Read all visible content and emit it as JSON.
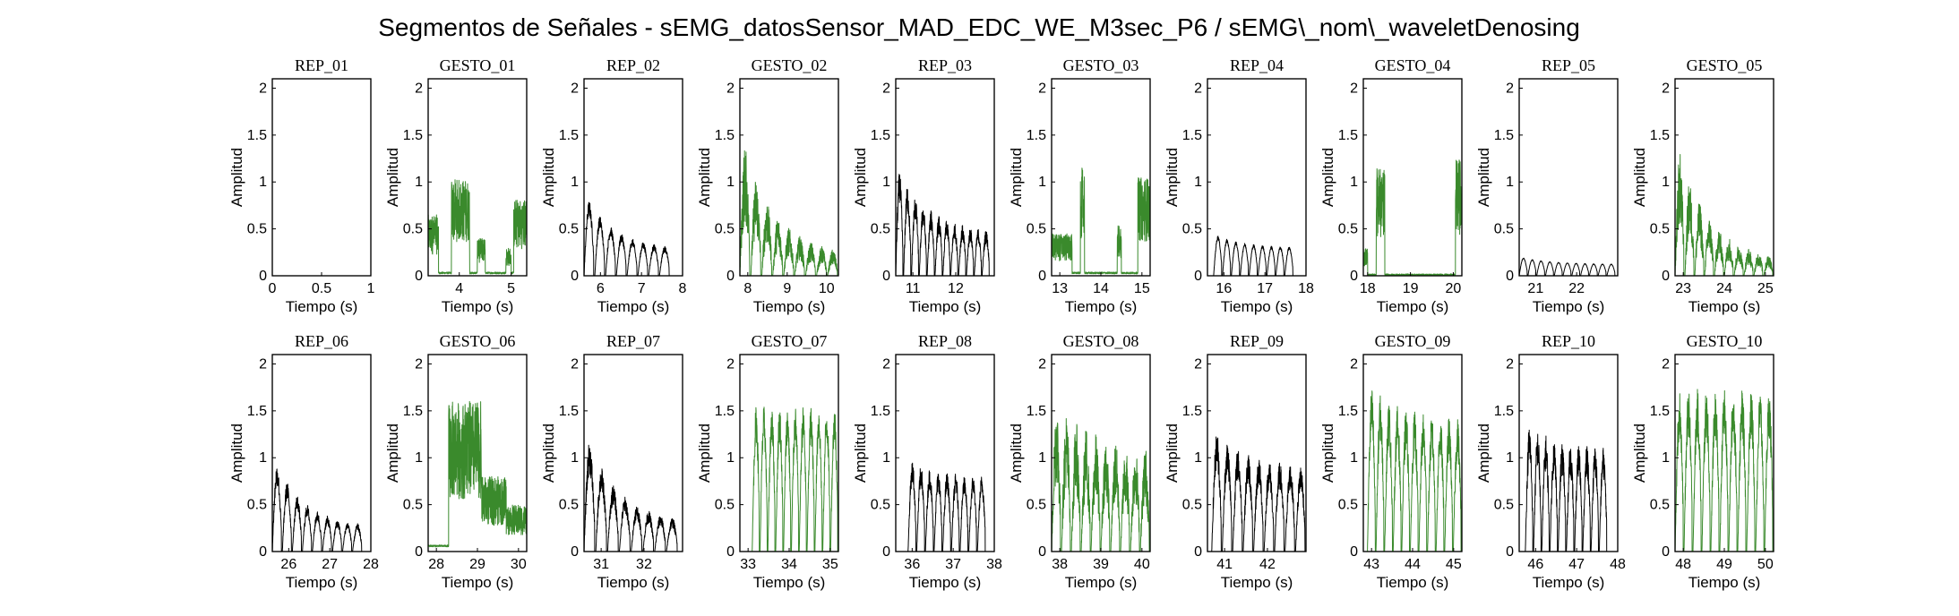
{
  "suptitle": "Segmentos de Señales - sEMG_datosSensor_MAD_EDC_WE_M3sec_P6 / sEMG\\_nom\\_waveletDenosing",
  "colors": {
    "rep": "#000000",
    "gesto": "#3a8a2c"
  },
  "chart_data": {
    "type": "line",
    "xlabel": "Tiempo (s)",
    "ylabel": "Amplitud",
    "ylim": [
      0,
      2.1
    ],
    "yticks": [
      0,
      0.5,
      1,
      1.5,
      2
    ],
    "yticklabels": [
      "0",
      "0.5",
      "1",
      "1.5",
      "2"
    ],
    "panels": [
      {
        "title": "REP_01",
        "kind": "rep",
        "xlim": [
          0,
          1
        ],
        "xticks": [
          0,
          0.5,
          1
        ],
        "xticklabels": [
          "0",
          "0.5",
          "1"
        ],
        "signal": {
          "base": 0,
          "amp": 0,
          "cycles": 0,
          "empty": true
        }
      },
      {
        "title": "GESTO_01",
        "kind": "gesto",
        "xlim": [
          3.4,
          5.3
        ],
        "xticks": [
          4,
          5
        ],
        "xticklabels": [
          "4",
          "5"
        ],
        "signal": {
          "base": 0.02,
          "amp": 0.35,
          "cycles": 0,
          "bursts": [
            [
              3.4,
              3.6,
              0.65
            ],
            [
              3.85,
              4.2,
              1.03
            ],
            [
              4.35,
              4.5,
              0.4
            ],
            [
              4.9,
              5.0,
              0.3
            ],
            [
              5.05,
              5.3,
              0.82
            ]
          ]
        }
      },
      {
        "title": "REP_02",
        "kind": "rep",
        "xlim": [
          5.6,
          8
        ],
        "xticks": [
          6,
          7,
          8
        ],
        "xticklabels": [
          "6",
          "7",
          "8"
        ],
        "signal": {
          "start": 5.6,
          "end": 7.7,
          "peak": 0.9,
          "decay": 0.3,
          "cycles": 8,
          "floor": 0.28,
          "noise": 0.2
        }
      },
      {
        "title": "GESTO_02",
        "kind": "gesto",
        "xlim": [
          7.8,
          10.3
        ],
        "xticks": [
          8,
          9,
          10
        ],
        "xticklabels": [
          "8",
          "9",
          "10"
        ],
        "signal": {
          "start": 7.8,
          "end": 10.3,
          "peak": 1.6,
          "decay": 1.0,
          "cycles": 9,
          "floor": 0.2,
          "noise": 0.6
        }
      },
      {
        "title": "REP_03",
        "kind": "rep",
        "xlim": [
          10.6,
          12.9
        ],
        "xticks": [
          11,
          12
        ],
        "xticklabels": [
          "11",
          "12"
        ],
        "signal": {
          "start": 10.6,
          "end": 12.8,
          "peak": 1.2,
          "decay": 0.55,
          "cycles": 12,
          "floor": 0.45,
          "noise": 0.3
        }
      },
      {
        "title": "GESTO_03",
        "kind": "gesto",
        "xlim": [
          12.8,
          15.2
        ],
        "xticks": [
          13,
          14,
          15
        ],
        "xticklabels": [
          "13",
          "14",
          "15"
        ],
        "signal": {
          "base": 0.02,
          "amp": 0.3,
          "cycles": 0,
          "bursts": [
            [
              12.8,
              13.3,
              0.45
            ],
            [
              13.5,
              13.6,
              1.15
            ],
            [
              14.4,
              14.5,
              0.55
            ],
            [
              14.9,
              15.2,
              1.05
            ]
          ]
        }
      },
      {
        "title": "REP_04",
        "kind": "rep",
        "xlim": [
          15.6,
          18
        ],
        "xticks": [
          16,
          17,
          18
        ],
        "xticklabels": [
          "16",
          "17",
          "18"
        ],
        "signal": {
          "start": 15.75,
          "end": 17.7,
          "peak": 0.45,
          "decay": 0.15,
          "cycles": 9,
          "floor": 0.3,
          "noise": 0.1
        }
      },
      {
        "title": "GESTO_04",
        "kind": "gesto",
        "xlim": [
          17.9,
          20.2
        ],
        "xticks": [
          18,
          19,
          20
        ],
        "xticklabels": [
          "18",
          "19",
          "20"
        ],
        "signal": {
          "base": 0.0,
          "amp": 0.05,
          "cycles": 0,
          "bursts": [
            [
              17.9,
              18.0,
              0.3
            ],
            [
              18.2,
              18.4,
              1.15
            ],
            [
              20.05,
              20.2,
              1.25
            ]
          ]
        }
      },
      {
        "title": "REP_05",
        "kind": "rep",
        "xlim": [
          20.6,
          23
        ],
        "xticks": [
          21,
          22
        ],
        "xticklabels": [
          "21",
          "22"
        ],
        "signal": {
          "start": 20.6,
          "end": 22.95,
          "peak": 0.2,
          "decay": 0.07,
          "cycles": 11,
          "floor": 0.12,
          "noise": 0.05
        }
      },
      {
        "title": "GESTO_05",
        "kind": "gesto",
        "xlim": [
          22.8,
          25.2
        ],
        "xticks": [
          23,
          24,
          25
        ],
        "xticklabels": [
          "23",
          "24",
          "25"
        ],
        "signal": {
          "start": 22.8,
          "end": 25.2,
          "peak": 1.5,
          "decay": 0.9,
          "cycles": 10,
          "floor": 0.15,
          "noise": 0.6
        }
      },
      {
        "title": "REP_06",
        "kind": "rep",
        "xlim": [
          25.6,
          28
        ],
        "xticks": [
          26,
          27,
          28
        ],
        "xticklabels": [
          "26",
          "27",
          "28"
        ],
        "signal": {
          "start": 25.6,
          "end": 27.8,
          "peak": 1.05,
          "decay": 0.8,
          "cycles": 9,
          "floor": 0.25,
          "noise": 0.25
        }
      },
      {
        "title": "GESTO_06",
        "kind": "gesto",
        "xlim": [
          27.8,
          30.2
        ],
        "xticks": [
          28,
          29,
          30
        ],
        "xticklabels": [
          "28",
          "29",
          "30"
        ],
        "signal": {
          "base": 0.05,
          "amp": 0.25,
          "cycles": 0,
          "bursts": [
            [
              28.3,
              29.1,
              1.6
            ],
            [
              29.1,
              29.7,
              0.8
            ],
            [
              29.7,
              30.2,
              0.5
            ]
          ]
        }
      },
      {
        "title": "REP_07",
        "kind": "rep",
        "xlim": [
          30.6,
          32.9
        ],
        "xticks": [
          31,
          32
        ],
        "xticklabels": [
          "31",
          "32"
        ],
        "signal": {
          "start": 30.6,
          "end": 32.8,
          "peak": 1.35,
          "decay": 1.0,
          "cycles": 8,
          "floor": 0.3,
          "noise": 0.3
        }
      },
      {
        "title": "GESTO_07",
        "kind": "gesto",
        "xlim": [
          32.8,
          35.2
        ],
        "xticks": [
          33,
          34,
          35
        ],
        "xticklabels": [
          "33",
          "34",
          "35"
        ],
        "signal": {
          "start": 33.1,
          "end": 35.2,
          "peak": 1.6,
          "decay": 0.0,
          "cycles": 11,
          "floor": 1.35,
          "noise": 0.25
        }
      },
      {
        "title": "REP_08",
        "kind": "rep",
        "xlim": [
          35.6,
          38
        ],
        "xticks": [
          36,
          37,
          38
        ],
        "xticklabels": [
          "36",
          "37",
          "38"
        ],
        "signal": {
          "start": 35.9,
          "end": 37.8,
          "peak": 1.0,
          "decay": 0.2,
          "cycles": 9,
          "floor": 0.8,
          "noise": 0.25
        }
      },
      {
        "title": "GESTO_08",
        "kind": "gesto",
        "xlim": [
          37.8,
          40.2
        ],
        "xticks": [
          38,
          39,
          40
        ],
        "xticklabels": [
          "38",
          "39",
          "40"
        ],
        "signal": {
          "start": 37.8,
          "end": 40.2,
          "peak": 1.7,
          "decay": 0.4,
          "cycles": 10,
          "floor": 1.1,
          "noise": 0.55
        }
      },
      {
        "title": "REP_09",
        "kind": "rep",
        "xlim": [
          40.6,
          42.9
        ],
        "xticks": [
          41,
          42
        ],
        "xticklabels": [
          "41",
          "42"
        ],
        "signal": {
          "start": 40.7,
          "end": 42.9,
          "peak": 1.35,
          "decay": 0.35,
          "cycles": 9,
          "floor": 0.9,
          "noise": 0.3
        }
      },
      {
        "title": "GESTO_09",
        "kind": "gesto",
        "xlim": [
          42.8,
          45.2
        ],
        "xticks": [
          43,
          44,
          45
        ],
        "xticklabels": [
          "43",
          "44",
          "45"
        ],
        "signal": {
          "start": 42.9,
          "end": 45.2,
          "peak": 1.8,
          "decay": 0.1,
          "cycles": 11,
          "floor": 1.4,
          "noise": 0.3
        }
      },
      {
        "title": "REP_10",
        "kind": "rep",
        "xlim": [
          45.6,
          48
        ],
        "xticks": [
          46,
          47,
          48
        ],
        "xticklabels": [
          "46",
          "47",
          "48"
        ],
        "signal": {
          "start": 45.75,
          "end": 47.75,
          "peak": 1.4,
          "decay": 0.1,
          "cycles": 10,
          "floor": 1.1,
          "noise": 0.3
        }
      },
      {
        "title": "GESTO_10",
        "kind": "gesto",
        "xlim": [
          47.8,
          50.2
        ],
        "xticks": [
          48,
          49,
          50
        ],
        "xticklabels": [
          "48",
          "49",
          "50"
        ],
        "signal": {
          "start": 47.8,
          "end": 50.2,
          "peak": 1.8,
          "decay": 0.0,
          "cycles": 11,
          "floor": 1.45,
          "noise": 0.3
        }
      }
    ]
  }
}
